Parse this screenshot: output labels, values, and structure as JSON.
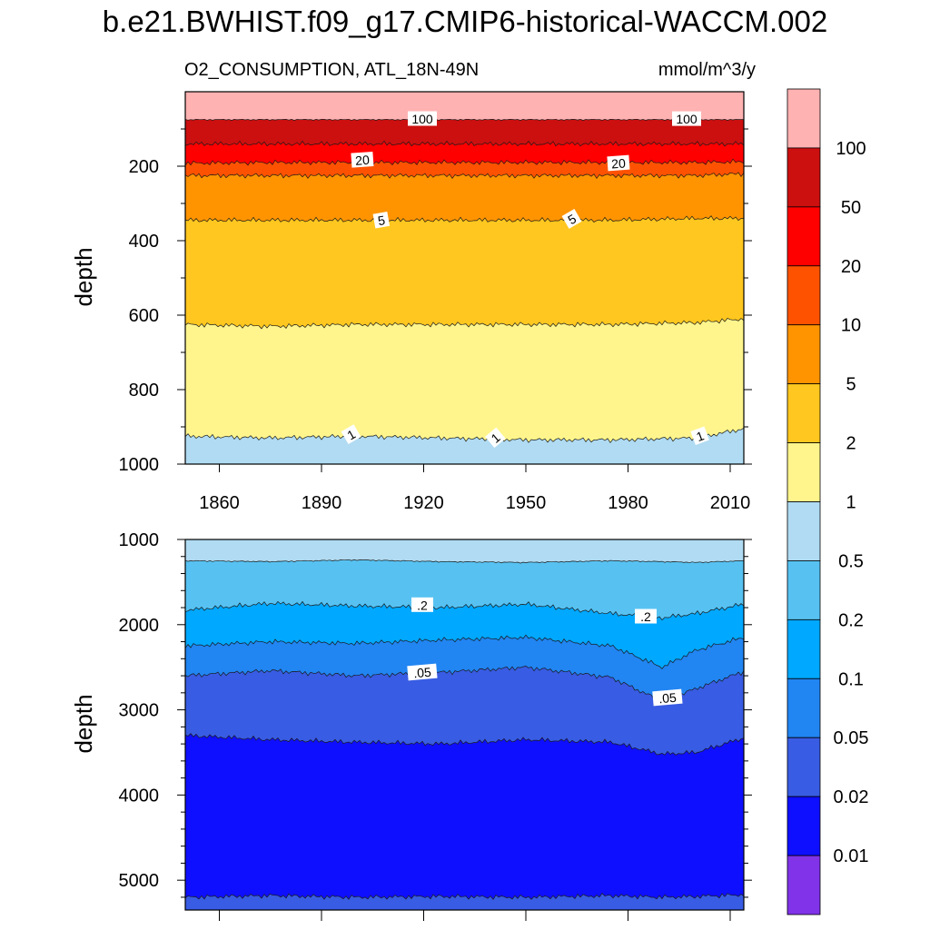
{
  "title": "b.e21.BWHIST.f09_g17.CMIP6-historical-WACCM.002",
  "panel_upper": {
    "variable_label": "O2_CONSUMPTION, ATL_18N-49N",
    "units": "mmol/m^3/y",
    "ylabel": "depth",
    "xticks": [
      "1860",
      "1890",
      "1920",
      "1950",
      "1980",
      "2010"
    ],
    "yticks": [
      "200",
      "400",
      "600",
      "800",
      "1000"
    ]
  },
  "panel_lower": {
    "ylabel": "depth",
    "yticks": [
      "1000",
      "2000",
      "3000",
      "4000",
      "5000"
    ]
  },
  "colorbar": {
    "labels": [
      "100",
      "50",
      "20",
      "10",
      "5",
      "2",
      "1",
      "0.5",
      "0.2",
      "0.1",
      "0.05",
      "0.02",
      "0.01"
    ],
    "colors": [
      "#ffb2b2",
      "#cc0f0f",
      "#ff0000",
      "#ff5200",
      "#ff9400",
      "#ffc71f",
      "#fff58c",
      "#b0dbf2",
      "#57c2f2",
      "#00a8ff",
      "#2185f2",
      "#385ce3",
      "#0f0fff",
      "#8033e8"
    ]
  },
  "chart_data": [
    {
      "type": "heatmap",
      "subtype": "depth-time filled contour",
      "title": "O2_CONSUMPTION, ATL_18N-49N",
      "units": "mmol/m^3/y",
      "xlabel": "",
      "ylabel": "depth",
      "xlim": [
        1850,
        2014
      ],
      "ylim": [
        1000,
        0
      ],
      "x": [
        1850,
        1875,
        1900,
        1925,
        1950,
        1975,
        2000,
        2014
      ],
      "contour_depths": [
        {
          "level": "100",
          "depth": [
            75,
            75,
            75,
            75,
            75,
            75,
            75,
            75
          ]
        },
        {
          "level": "50",
          "depth": [
            140,
            140,
            140,
            140,
            140,
            140,
            140,
            140
          ]
        },
        {
          "level": "20",
          "depth": [
            192,
            190,
            190,
            190,
            190,
            190,
            190,
            188
          ]
        },
        {
          "level": "10",
          "depth": [
            225,
            225,
            225,
            225,
            225,
            225,
            225,
            220
          ]
        },
        {
          "level": "5",
          "depth": [
            345,
            345,
            345,
            345,
            345,
            345,
            340,
            340
          ]
        },
        {
          "level": "2",
          "depth": [
            625,
            630,
            625,
            625,
            625,
            625,
            620,
            610
          ]
        },
        {
          "level": "1",
          "depth": [
            925,
            930,
            925,
            930,
            935,
            935,
            930,
            905
          ]
        }
      ],
      "contour_labels": [
        "100",
        "100",
        "20",
        "20",
        "5",
        "5",
        "1",
        "1",
        "1"
      ]
    },
    {
      "type": "heatmap",
      "subtype": "depth-time filled contour",
      "xlabel": "",
      "ylabel": "depth",
      "xlim": [
        1850,
        2014
      ],
      "ylim": [
        5350,
        1000
      ],
      "x": [
        1850,
        1875,
        1900,
        1925,
        1950,
        1975,
        1990,
        2000,
        2014
      ],
      "contour_depths": [
        {
          "level": "0.5",
          "depth": [
            1250,
            1260,
            1240,
            1260,
            1270,
            1250,
            1260,
            1270,
            1250
          ]
        },
        {
          "level": "0.2",
          "depth": [
            1830,
            1750,
            1780,
            1800,
            1760,
            1870,
            1920,
            1870,
            1760
          ]
        },
        {
          "level": "0.1",
          "depth": [
            2250,
            2200,
            2220,
            2180,
            2150,
            2250,
            2500,
            2300,
            2150
          ]
        },
        {
          "level": "0.05",
          "depth": [
            2600,
            2540,
            2600,
            2560,
            2500,
            2620,
            2900,
            2750,
            2550
          ]
        },
        {
          "level": "0.02",
          "depth": [
            3300,
            3350,
            3380,
            3400,
            3350,
            3380,
            3520,
            3500,
            3330
          ]
        },
        {
          "level": "0.01",
          "depth": [
            5200,
            5180,
            5200,
            5190,
            5200,
            5180,
            5200,
            5190,
            5170
          ]
        }
      ],
      "contour_labels": [
        ".2",
        ".2",
        ".05",
        ".05"
      ]
    }
  ]
}
